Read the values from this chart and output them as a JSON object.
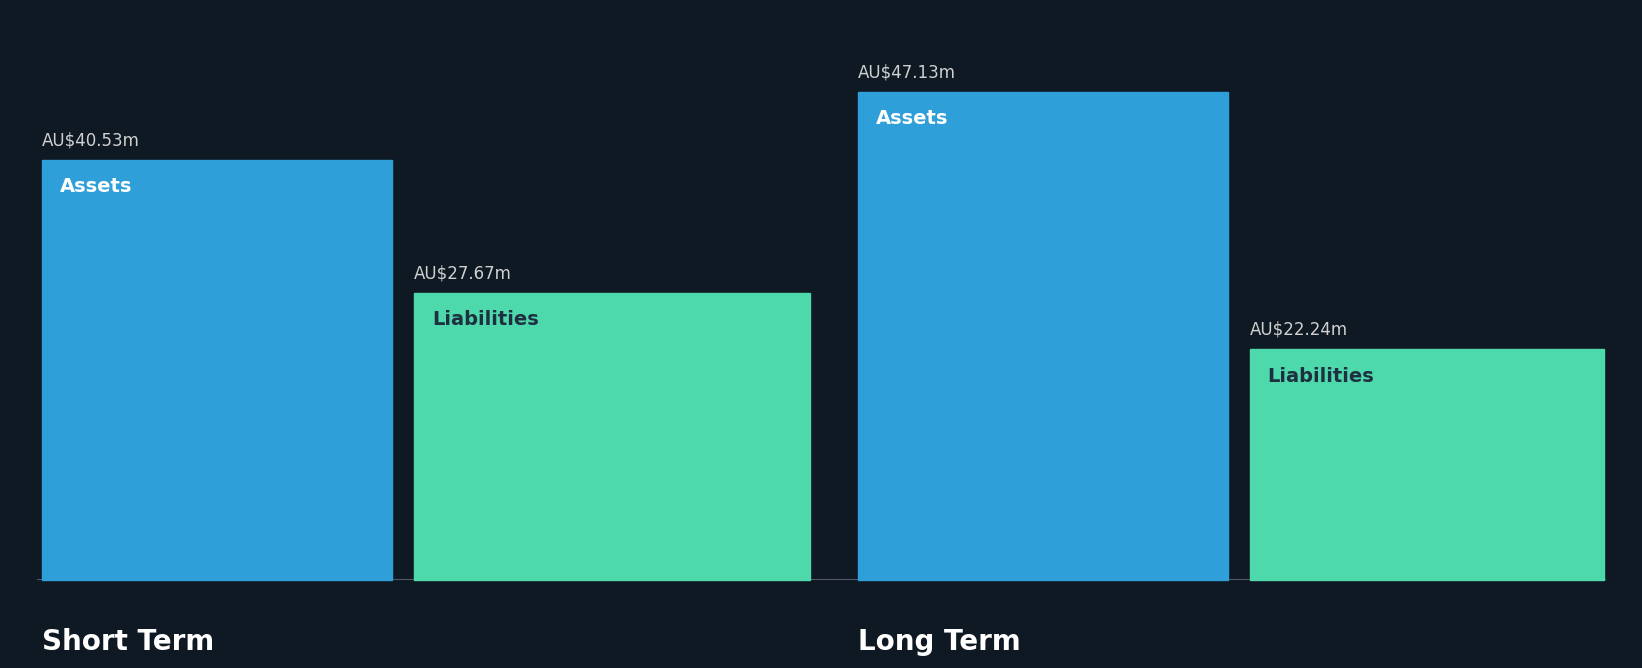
{
  "background_color": "#0f1923",
  "short_term": {
    "assets_value": 40.53,
    "assets_label": "AU$40.53m",
    "assets_color": "#2e9fd8",
    "assets_inner_label": "Assets",
    "liabilities_value": 27.67,
    "liabilities_label": "AU$27.67m",
    "liabilities_color": "#4dd9ac",
    "liabilities_inner_label": "Liabilities"
  },
  "long_term": {
    "assets_value": 47.13,
    "assets_label": "AU$47.13m",
    "assets_color": "#2e9fd8",
    "assets_inner_label": "Assets",
    "liabilities_value": 22.24,
    "liabilities_label": "AU$22.24m",
    "liabilities_color": "#4dd9ac",
    "liabilities_inner_label": "Liabilities"
  },
  "short_term_label": "Short Term",
  "long_term_label": "Long Term",
  "label_color": "#ffffff",
  "value_label_color": "#d0d0d0",
  "inner_label_color_assets": "#ffffff",
  "inner_label_color_liabilities": "#1e3040",
  "max_value": 47.13,
  "font_size_inner": 14,
  "font_size_value": 12,
  "font_size_group_label": 20
}
